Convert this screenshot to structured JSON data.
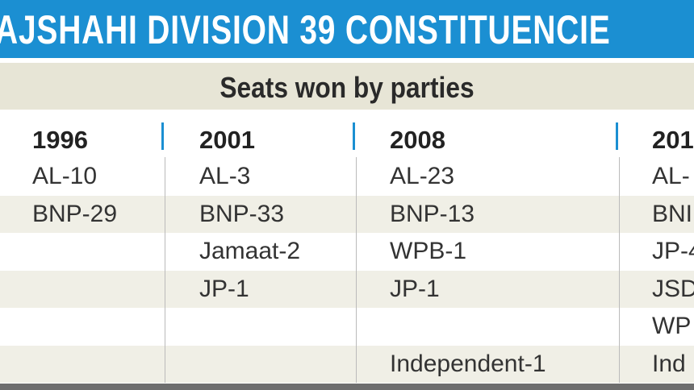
{
  "header": {
    "title": "AJSHAHI DIVISION 39 CONSTITUENCIE",
    "subtitle": "Seats won by parties"
  },
  "columns": [
    {
      "year": "1996",
      "entries": [
        "AL-10",
        "BNP-29"
      ]
    },
    {
      "year": "2001",
      "entries": [
        "AL-3",
        "BNP-33",
        "Jamaat-2",
        "JP-1"
      ]
    },
    {
      "year": "2008",
      "entries": [
        "AL-23",
        "BNP-13",
        "WPB-1",
        "JP-1",
        null,
        "Independent-1"
      ]
    },
    {
      "year": "201",
      "entries": [
        "AL-",
        "BNI",
        "JP-4",
        "JSD",
        "WP",
        "Ind"
      ]
    }
  ]
}
